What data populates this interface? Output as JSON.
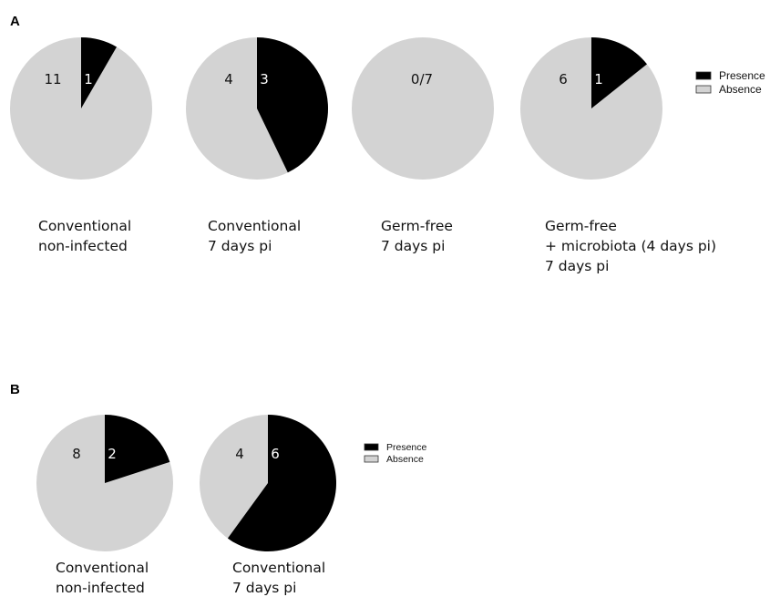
{
  "figure": {
    "panel_a_label": "A",
    "panel_b_label": "B"
  },
  "colors": {
    "presence": "#000000",
    "absence": "#d3d3d3",
    "text_on_dark": "#ffffff",
    "text_on_light": "#111111"
  },
  "chart_data": [
    {
      "type": "pie",
      "panel": "A",
      "legend": [
        "Presence",
        "Absence"
      ],
      "legend_placement": "right",
      "pies": [
        {
          "caption": [
            "Conventional",
            "non-infected"
          ],
          "presence": 1,
          "absence": 11,
          "presence_label": "1",
          "absence_label": "11"
        },
        {
          "caption": [
            "Conventional",
            "7 days pi"
          ],
          "presence": 3,
          "absence": 4,
          "presence_label": "3",
          "absence_label": "4"
        },
        {
          "caption": [
            "Germ-free",
            "7 days pi"
          ],
          "presence": 0,
          "absence": 7,
          "presence_label": "",
          "absence_label": "0/7"
        },
        {
          "caption": [
            "Germ-free",
            "+ microbiota (4 days pi)",
            "7 days pi"
          ],
          "presence": 1,
          "absence": 6,
          "presence_label": "1",
          "absence_label": "6"
        }
      ]
    },
    {
      "type": "pie",
      "panel": "B",
      "legend": [
        "Presence",
        "Absence"
      ],
      "legend_placement": "right",
      "pies": [
        {
          "caption": [
            "Conventional",
            "non-infected"
          ],
          "presence": 2,
          "absence": 8,
          "presence_label": "2",
          "absence_label": "8"
        },
        {
          "caption": [
            "Conventional",
            "7 days pi"
          ],
          "presence": 6,
          "absence": 4,
          "presence_label": "6",
          "absence_label": "4"
        }
      ]
    }
  ]
}
